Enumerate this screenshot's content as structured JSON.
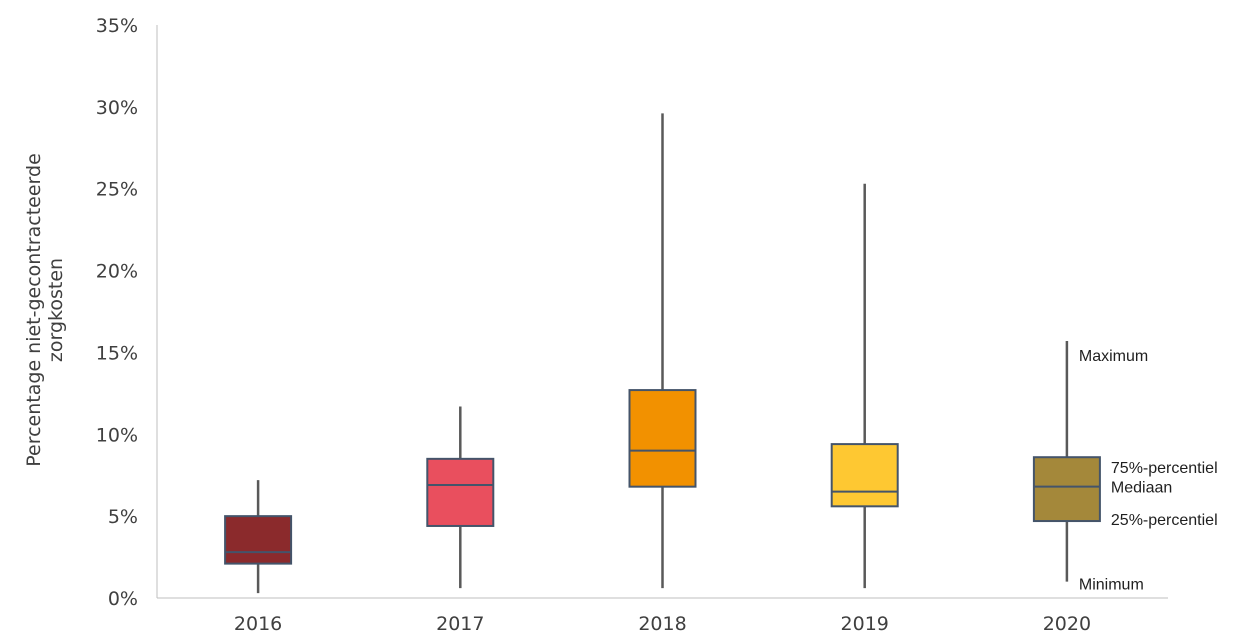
{
  "chart_data": {
    "type": "boxplot",
    "ylabel_lines": [
      "Percentage niet-gecontracteerde",
      "zorgkosten"
    ],
    "xlabel": "",
    "ylim": [
      0,
      35
    ],
    "ytick_values": [
      0,
      5,
      10,
      15,
      20,
      25,
      30,
      35
    ],
    "ytick_labels": [
      "0%",
      "5%",
      "10%",
      "15%",
      "20%",
      "25%",
      "30%",
      "35%"
    ],
    "grid": false,
    "categories": [
      "2016",
      "2017",
      "2018",
      "2019",
      "2020"
    ],
    "boxes": [
      {
        "year": "2016",
        "min": 0.3,
        "q1": 2.1,
        "median": 2.8,
        "q3": 5.0,
        "max": 7.2,
        "color": "#8b2a2c"
      },
      {
        "year": "2017",
        "min": 0.6,
        "q1": 4.4,
        "median": 6.9,
        "q3": 8.5,
        "max": 11.7,
        "color": "#e94f5e"
      },
      {
        "year": "2018",
        "min": 0.6,
        "q1": 6.8,
        "median": 9.0,
        "q3": 12.7,
        "max": 29.6,
        "color": "#f29100"
      },
      {
        "year": "2019",
        "min": 0.6,
        "q1": 5.6,
        "median": 6.5,
        "q3": 9.4,
        "max": 25.3,
        "color": "#fec832"
      },
      {
        "year": "2020",
        "min": 1.0,
        "q1": 4.7,
        "median": 6.8,
        "q3": 8.6,
        "max": 15.7,
        "color": "#a4883a"
      }
    ],
    "legend_annotations": {
      "maximum": "Maximum",
      "q3": "75%-percentiel",
      "median": "Mediaan",
      "q1": "25%-percentiel",
      "minimum": "Minimum"
    },
    "stroke_color": "#44546a",
    "axis_color": "#bfbfbf"
  }
}
